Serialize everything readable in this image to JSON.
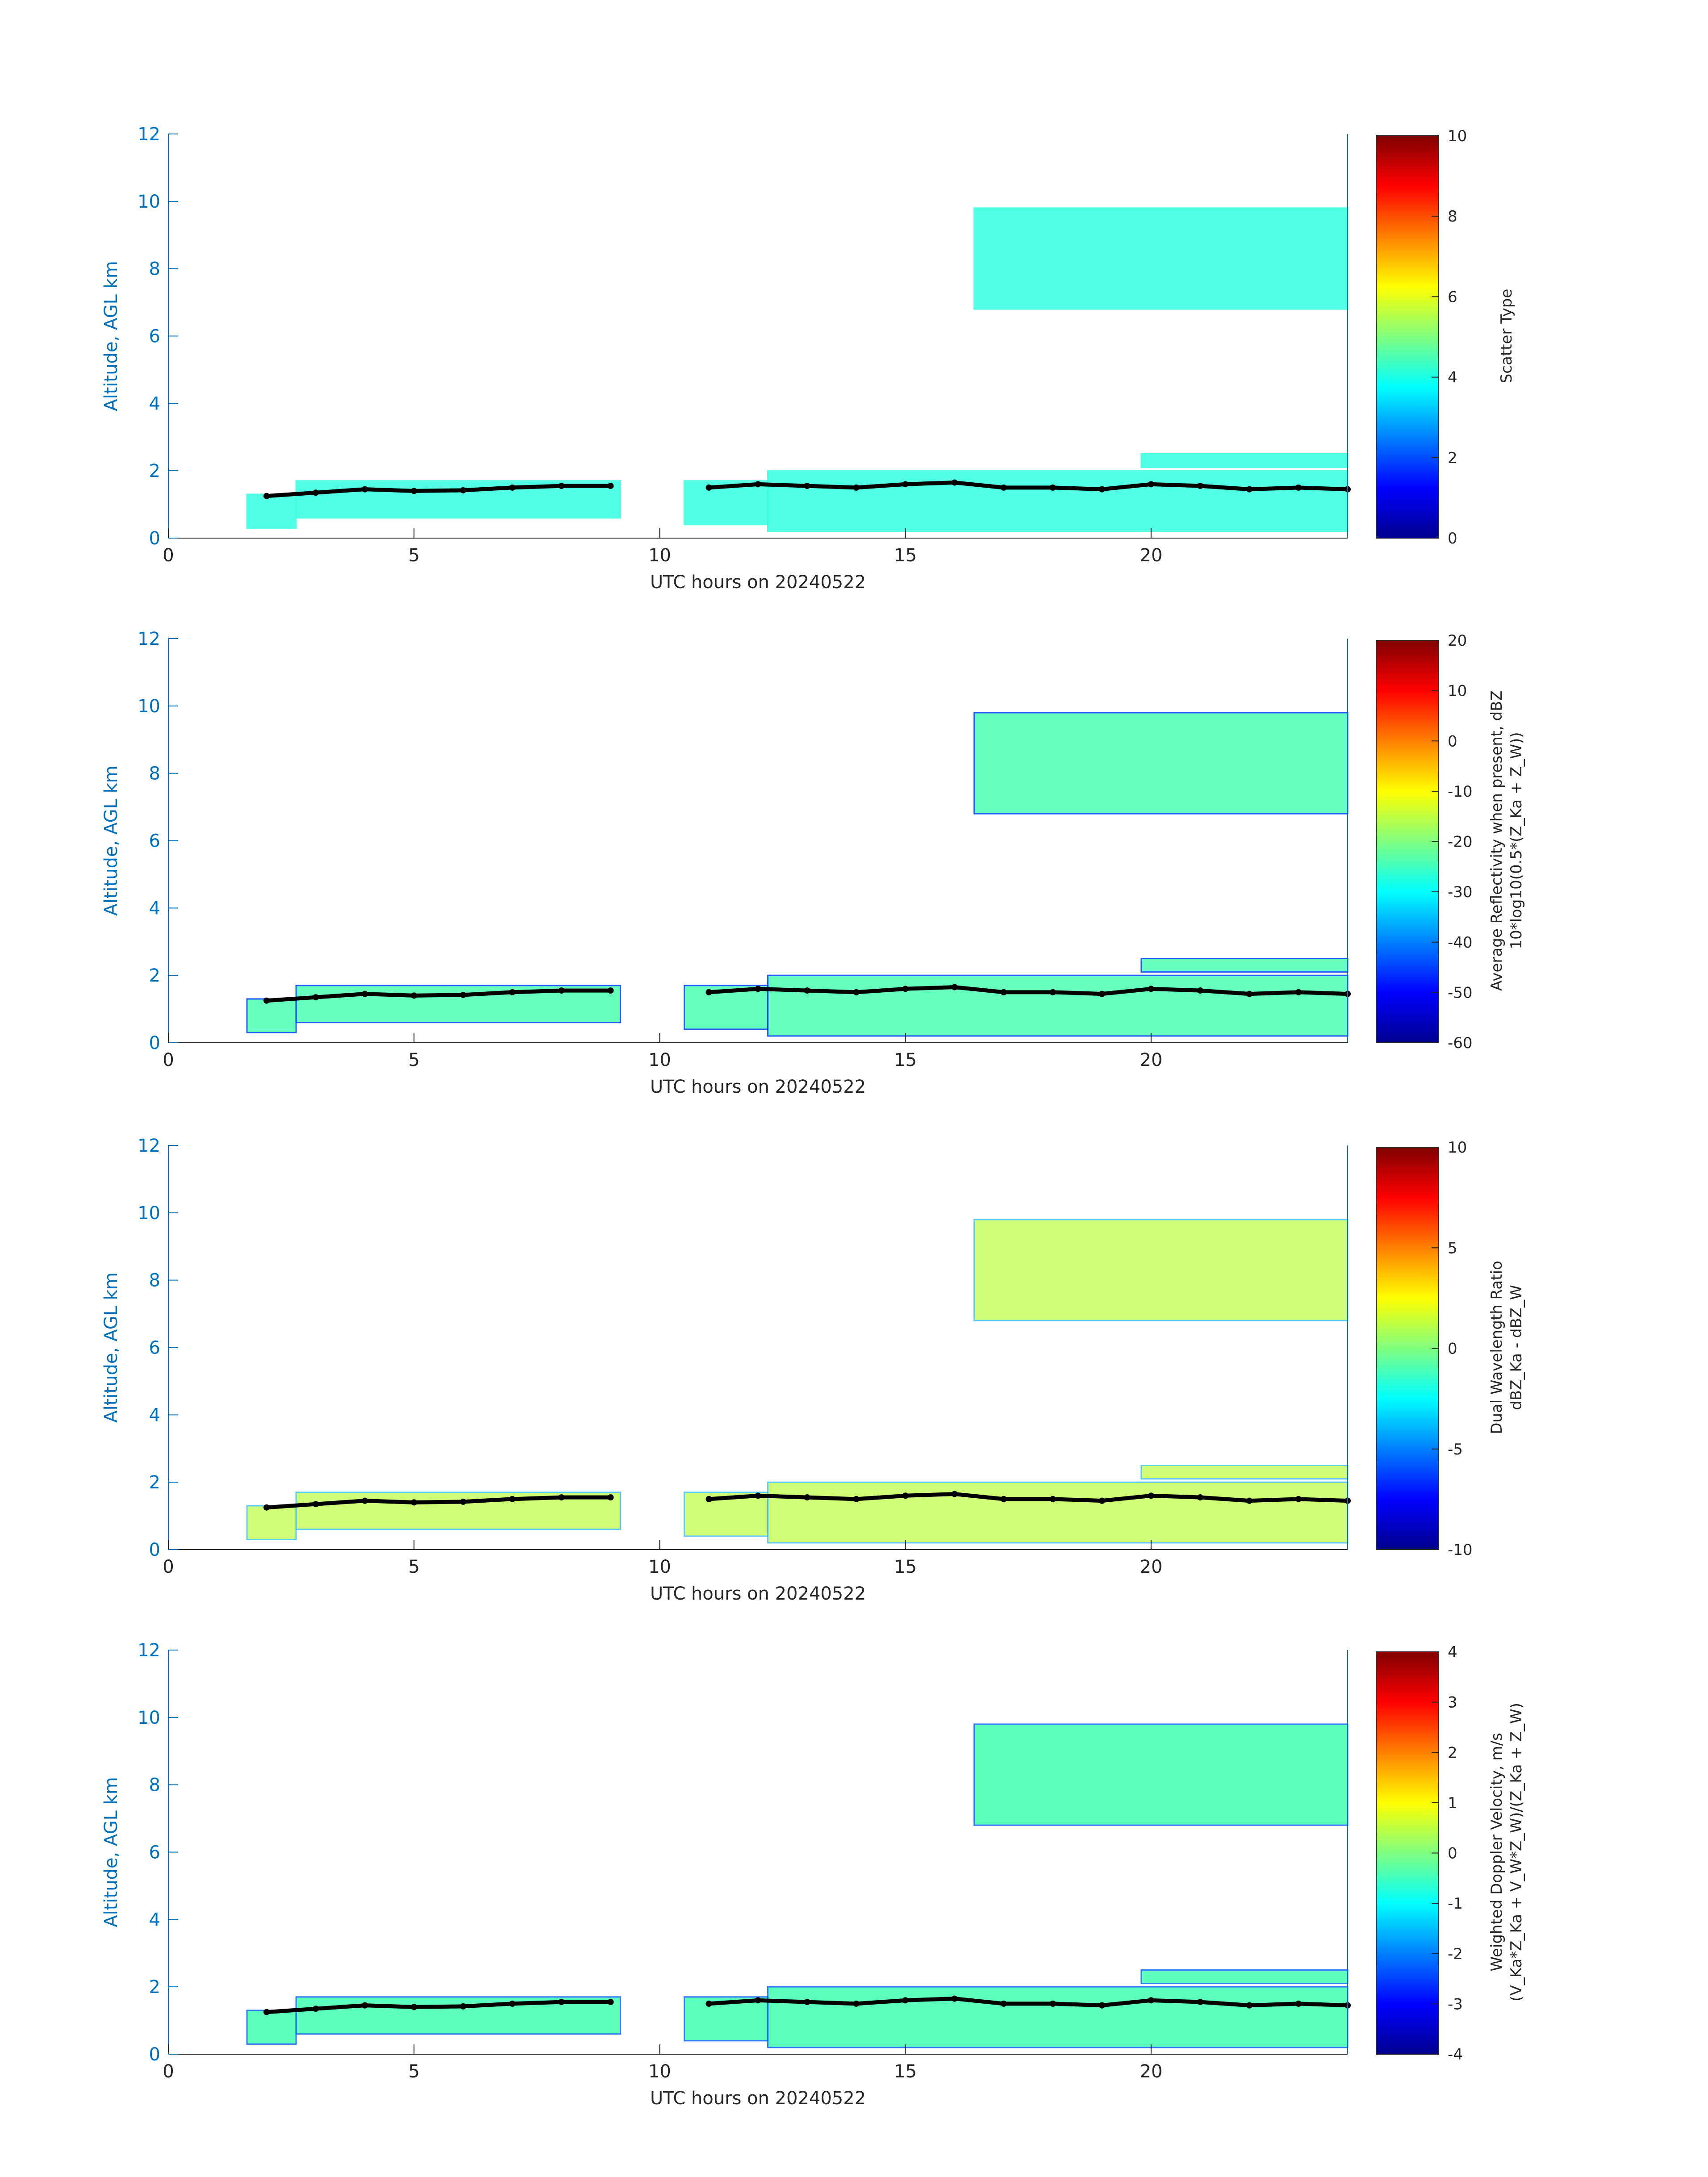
{
  "colormap": [
    "#00008F",
    "#0000FF",
    "#0080FF",
    "#00FFFF",
    "#80FF80",
    "#FFFF00",
    "#FF8000",
    "#FF0000",
    "#800000"
  ],
  "chart_data": [
    {
      "type": "heatmap",
      "xlabel": "UTC hours on 20240522",
      "ylabel": "Altitude, AGL km",
      "xlim": [
        0,
        24
      ],
      "ylim": [
        0,
        12
      ],
      "xticks": [
        0,
        5,
        10,
        15,
        20
      ],
      "yticks": [
        0,
        2,
        4,
        6,
        8,
        10,
        12
      ],
      "colorbar": {
        "label_lines": [
          "Scatter Type"
        ],
        "range": [
          0,
          10
        ],
        "ticks": [
          0,
          2,
          4,
          6,
          8,
          10
        ]
      }
    },
    {
      "type": "heatmap",
      "xlabel": "UTC hours on 20240522",
      "ylabel": "Altitude, AGL km",
      "xlim": [
        0,
        24
      ],
      "ylim": [
        0,
        12
      ],
      "xticks": [
        0,
        5,
        10,
        15,
        20
      ],
      "yticks": [
        0,
        2,
        4,
        6,
        8,
        10,
        12
      ],
      "colorbar": {
        "label_lines": [
          "Average Reflectivity when present, dBZ",
          "10*log10(0.5*(Z_Ka + Z_W))"
        ],
        "range": [
          -60,
          20
        ],
        "ticks": [
          -60,
          -50,
          -40,
          -30,
          -20,
          -10,
          0,
          10,
          20
        ]
      }
    },
    {
      "type": "heatmap",
      "xlabel": "UTC hours on 20240522",
      "ylabel": "Altitude, AGL km",
      "xlim": [
        0,
        24
      ],
      "ylim": [
        0,
        12
      ],
      "xticks": [
        0,
        5,
        10,
        15,
        20
      ],
      "yticks": [
        0,
        2,
        4,
        6,
        8,
        10,
        12
      ],
      "colorbar": {
        "label_lines": [
          "Dual Wavelength Ratio",
          "dBZ_Ka - dBZ_W"
        ],
        "range": [
          -10,
          10
        ],
        "ticks": [
          -10,
          -5,
          0,
          5,
          10
        ]
      }
    },
    {
      "type": "heatmap",
      "xlabel": "UTC hours on 20240522",
      "ylabel": "Altitude, AGL km",
      "xlim": [
        0,
        24
      ],
      "ylim": [
        0,
        12
      ],
      "xticks": [
        0,
        5,
        10,
        15,
        20
      ],
      "yticks": [
        0,
        2,
        4,
        6,
        8,
        10,
        12
      ],
      "colorbar": {
        "label_lines": [
          "Weighted Doppler Velocity, m/s",
          "(V_Ka*Z_Ka + V_W*Z_W)/(Z_Ka + Z_W)"
        ],
        "range": [
          -4,
          4
        ],
        "ticks": [
          -4,
          -3,
          -2,
          -1,
          0,
          1,
          2,
          3,
          4
        ]
      }
    }
  ],
  "field_regions": {
    "low_layer": [
      [
        1.6,
        0.3,
        2.6,
        1.3
      ],
      [
        2.6,
        0.6,
        9.2,
        1.7
      ],
      [
        10.5,
        0.4,
        12.2,
        1.7
      ],
      [
        12.2,
        0.2,
        24,
        2.0
      ]
    ],
    "high_layer": [
      [
        16.4,
        6.8,
        24,
        9.8
      ],
      [
        19.8,
        2.1,
        24,
        2.5
      ]
    ],
    "top_boundary_points": [
      [
        2.0,
        1.25
      ],
      [
        3.0,
        1.35
      ],
      [
        4.0,
        1.45
      ],
      [
        5.0,
        1.4
      ],
      [
        6.0,
        1.42
      ],
      [
        7.0,
        1.5
      ],
      [
        8.0,
        1.55
      ],
      [
        9.0,
        1.55
      ],
      [
        11.0,
        1.5
      ],
      [
        12.0,
        1.6
      ],
      [
        13.0,
        1.55
      ],
      [
        14.0,
        1.5
      ],
      [
        15.0,
        1.6
      ],
      [
        16.0,
        1.65
      ],
      [
        17.0,
        1.5
      ],
      [
        18.0,
        1.5
      ],
      [
        19.0,
        1.45
      ],
      [
        20.0,
        1.6
      ],
      [
        21.0,
        1.55
      ],
      [
        22.0,
        1.45
      ],
      [
        23.0,
        1.5
      ],
      [
        24.0,
        1.45
      ]
    ]
  }
}
